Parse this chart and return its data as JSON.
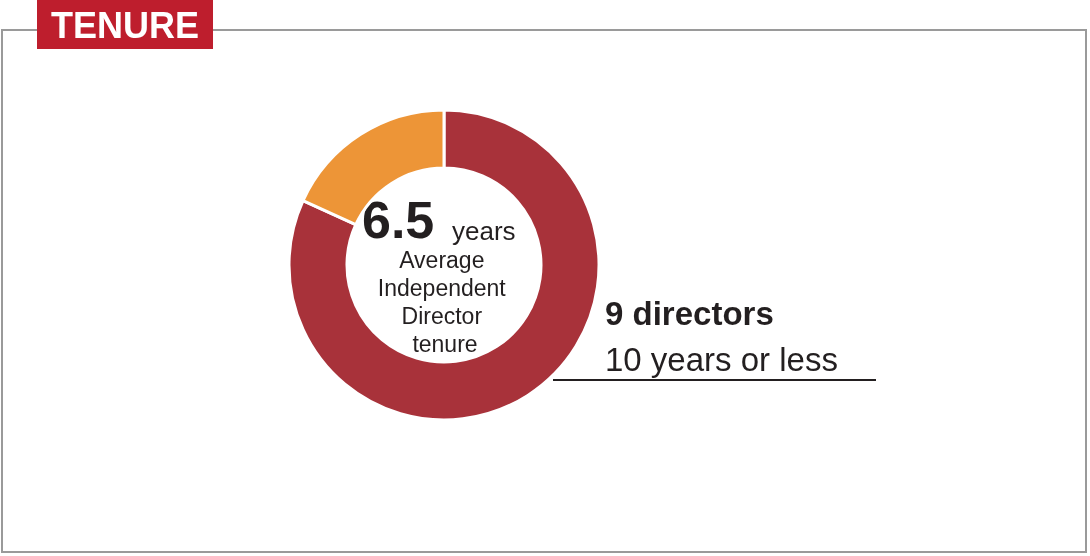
{
  "chart_data": {
    "type": "donut",
    "title": "TENURE",
    "categories": [
      "10 years or less",
      null
    ],
    "values": [
      9,
      2
    ],
    "colors": [
      "#a8323a",
      "#ed9537"
    ],
    "value_labels": [
      "9 directors",
      null
    ],
    "annotations": [
      "6.5",
      "years",
      "Average Independent Director tenure"
    ],
    "legend": false
  }
}
